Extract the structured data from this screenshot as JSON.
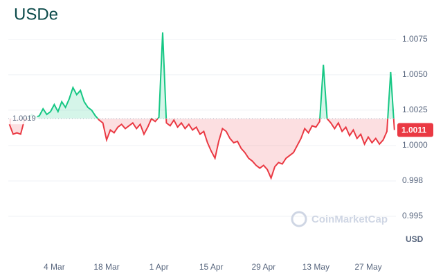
{
  "chart_data": {
    "type": "line",
    "title": "USDe",
    "y_unit": "USD",
    "watermark": "CoinMarketCap",
    "categories": [
      null,
      null,
      null,
      null,
      null,
      null,
      null,
      null,
      null,
      null,
      null,
      null,
      "4 Mar",
      null,
      null,
      null,
      null,
      null,
      null,
      null,
      null,
      null,
      null,
      null,
      null,
      null,
      "18 Mar",
      null,
      null,
      null,
      null,
      null,
      null,
      null,
      null,
      null,
      null,
      null,
      null,
      null,
      "1 Apr",
      null,
      null,
      null,
      null,
      null,
      null,
      null,
      null,
      null,
      null,
      null,
      null,
      null,
      "15 Apr",
      null,
      null,
      null,
      null,
      null,
      null,
      null,
      null,
      null,
      null,
      null,
      null,
      null,
      "29 Apr",
      null,
      null,
      null,
      null,
      null,
      null,
      null,
      null,
      null,
      null,
      null,
      null,
      null,
      "13 May",
      null,
      null,
      null,
      null,
      null,
      null,
      null,
      null,
      null,
      null,
      null,
      null,
      null,
      "27 May",
      null,
      null,
      null,
      null,
      null,
      null,
      null
    ],
    "values": [
      1.0015,
      1.0008,
      1.0009,
      1.0008,
      1.0018,
      1.0019,
      1.0022,
      1.002,
      1.0021,
      1.0026,
      1.0022,
      1.0024,
      1.0029,
      1.0024,
      1.0031,
      1.0027,
      1.0033,
      1.0041,
      1.0036,
      1.0039,
      1.0031,
      1.0027,
      1.0025,
      1.0021,
      1.0018,
      1.0016,
      1.0004,
      1.0011,
      1.0009,
      1.0013,
      1.0015,
      1.0012,
      1.0014,
      1.0016,
      1.0012,
      1.0015,
      1.0008,
      1.0013,
      1.0019,
      1.0017,
      1.002,
      1.008,
      1.0016,
      1.0014,
      1.0018,
      1.0013,
      1.0016,
      1.0012,
      1.0015,
      1.0011,
      1.0013,
      1.0008,
      1.001,
      1.0002,
      0.9996,
      0.9991,
      1.0003,
      1.0012,
      1.001,
      1.0005,
      1.0002,
      1.0003,
      0.9998,
      0.9995,
      0.9991,
      0.9989,
      0.9986,
      0.9984,
      0.9986,
      0.9983,
      0.9977,
      0.9985,
      0.9988,
      0.9987,
      0.9991,
      0.9993,
      0.9995,
      1.0,
      1.0005,
      1.0012,
      1.0009,
      1.0014,
      1.0013,
      1.0017,
      1.0057,
      1.0019,
      1.0016,
      1.0012,
      1.0016,
      1.001,
      1.0013,
      1.0007,
      1.0011,
      1.0005,
      1.0008,
      1.0001,
      1.0006,
      1.0002,
      1.0005,
      1.0001,
      1.0004,
      1.001,
      1.0052,
      1.0011
    ],
    "baseline": 1.0019,
    "up_color": "#16c784",
    "down_color": "#ea3943",
    "ylim": [
      0.9924,
      1.0098
    ],
    "yticks": [
      {
        "value": 0.995,
        "label": "0.995"
      },
      {
        "value": 0.9975,
        "label": "0.998"
      },
      {
        "value": 1,
        "label": "1.0000"
      },
      1.0025,
      {
        "value": 1.005,
        "label": "1.0050"
      },
      1.0075
    ],
    "grid": true
  }
}
